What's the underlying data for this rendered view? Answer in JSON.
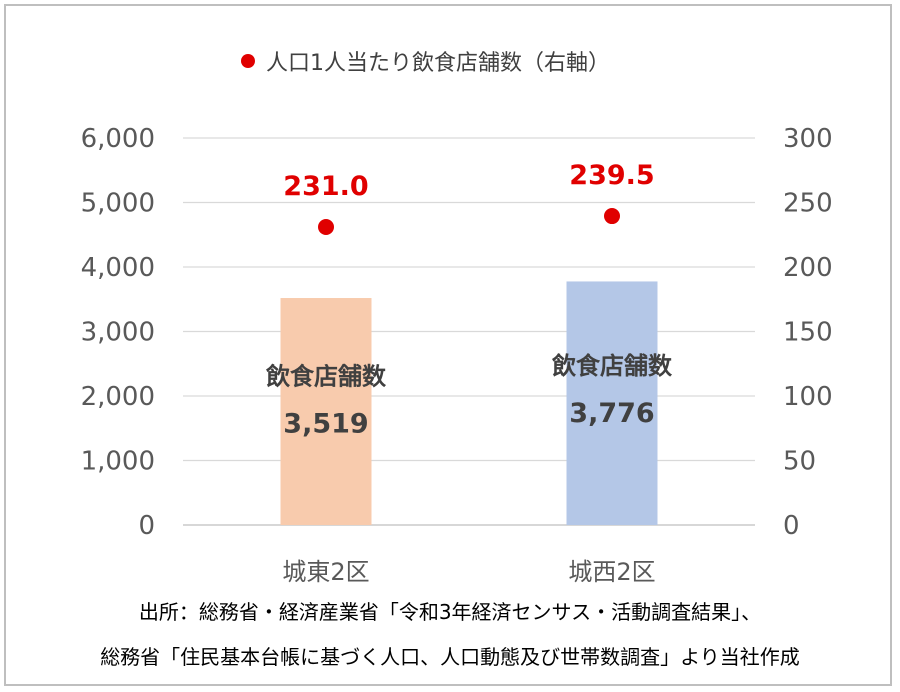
{
  "chart_data": {
    "type": "bar",
    "categories": [
      "城東2区",
      "城西2区"
    ],
    "series": [
      {
        "values": [
          3519,
          3776
        ],
        "axis": "left",
        "colors": [
          "#f8cbad",
          "#b4c7e7"
        ],
        "inner_label": "飲食店舗数",
        "value_labels": [
          "3,519",
          "3,776"
        ]
      },
      {
        "name": "人口1人当たり飲食店舗数（右軸）",
        "type": "scatter",
        "values": [
          231.0,
          239.5
        ],
        "axis": "right",
        "color": "#e00000",
        "value_labels": [
          "231.0",
          "239.5"
        ]
      }
    ],
    "ylim_left": [
      0,
      6000
    ],
    "ylim_right": [
      0,
      300
    ],
    "yticks_left": [
      "0",
      "1,000",
      "2,000",
      "3,000",
      "4,000",
      "5,000",
      "6,000"
    ],
    "yticks_right": [
      "0",
      "50",
      "100",
      "150",
      "200",
      "250",
      "300"
    ],
    "grid": true,
    "legend_position": "top"
  },
  "source_lines": [
    "出所：総務省・経済産業省「令和3年経済センサス・活動調査結果」、",
    "総務省「住民基本台帳に基づく人口、人口動態及び世帯数調査」より当社作成"
  ]
}
